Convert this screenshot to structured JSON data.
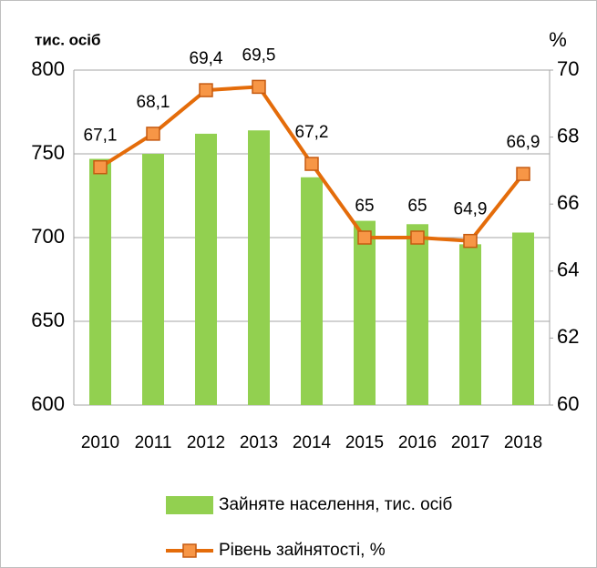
{
  "chart_data": {
    "type": "bar_line",
    "y_label": "тис. осіб",
    "y2_label": "%",
    "categories": [
      "2010",
      "2011",
      "2012",
      "2013",
      "2014",
      "2015",
      "2016",
      "2017",
      "2018"
    ],
    "series": [
      {
        "name": "Зайняте населення, тис. осіб",
        "type": "bar",
        "color": "#92d050",
        "values": [
          747,
          750,
          762,
          764,
          736,
          710,
          708,
          696,
          703
        ]
      },
      {
        "name": "Рівень зайнятості, %",
        "type": "line",
        "axis": "y2",
        "color": "#e46c0a",
        "values": [
          67.1,
          68.1,
          69.4,
          69.5,
          67.2,
          65,
          65,
          64.9,
          66.9
        ],
        "value_labels": [
          "67,1",
          "68,1",
          "69,4",
          "69,5",
          "67,2",
          "65",
          "65",
          "64,9",
          "66,9"
        ]
      }
    ],
    "ylim": [
      600,
      800
    ],
    "yticks": [
      600,
      650,
      700,
      750,
      800
    ],
    "y2lim": [
      60,
      70
    ],
    "y2ticks": [
      60,
      62,
      64,
      66,
      68,
      70
    ],
    "grid": true,
    "legend": "bottom"
  }
}
